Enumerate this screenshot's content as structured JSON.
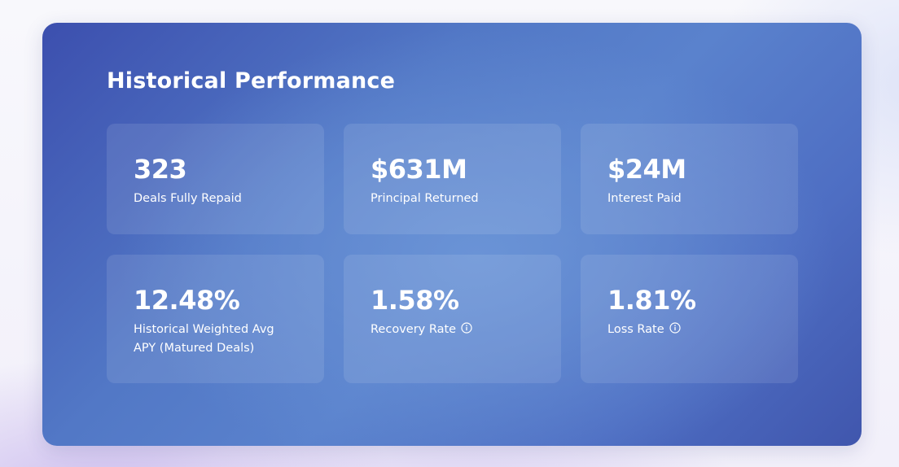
{
  "panel": {
    "title": "Historical Performance"
  },
  "stats": [
    {
      "value": "323",
      "label": "Deals Fully Repaid",
      "has_info": false
    },
    {
      "value": "$631M",
      "label": "Principal Returned",
      "has_info": false
    },
    {
      "value": "$24M",
      "label": "Interest Paid",
      "has_info": false
    },
    {
      "value": "12.48%",
      "label": "Historical Weighted Avg APY (Matured Deals)",
      "has_info": false
    },
    {
      "value": "1.58%",
      "label": "Recovery Rate",
      "has_info": true,
      "icon": "info-icon"
    },
    {
      "value": "1.81%",
      "label": "Loss Rate",
      "has_info": true,
      "icon": "info-icon"
    }
  ],
  "colors": {
    "panel_gradient_start": "#3c4fae",
    "panel_gradient_center": "#6a93d6",
    "text": "#ffffff"
  }
}
